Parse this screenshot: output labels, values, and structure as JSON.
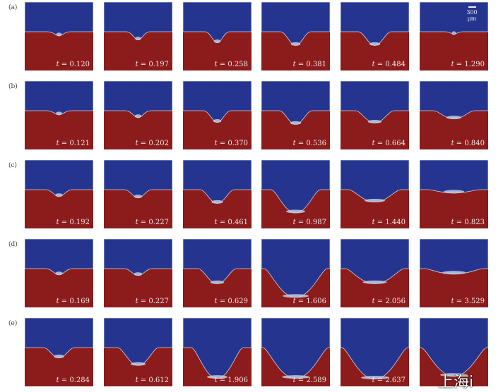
{
  "figure": {
    "colors": {
      "upper_phase": "#25358f",
      "lower_phase": "#8c1b1c",
      "interface": "#c9d7e6"
    },
    "scale_bar": "300 μm",
    "time_prefix": "t = ",
    "rows": [
      {
        "label": "(a)",
        "times": [
          "0.120",
          "0.197",
          "0.258",
          "0.381",
          "0.484",
          "1.290"
        ]
      },
      {
        "label": "(b)",
        "times": [
          "0.121",
          "0.202",
          "0.370",
          "0.536",
          "0.664",
          "0.840"
        ]
      },
      {
        "label": "(c)",
        "times": [
          "0.192",
          "0.227",
          "0.461",
          "0.987",
          "1.440",
          "0.823"
        ]
      },
      {
        "label": "(d)",
        "times": [
          "0.169",
          "0.227",
          "0.629",
          "1.606",
          "2.056",
          "3.529"
        ]
      },
      {
        "label": "(e)",
        "times": [
          "0.284",
          "0.612",
          "1.906",
          "2.589",
          "2.637",
          null
        ]
      }
    ]
  },
  "watermark": "上海i"
}
